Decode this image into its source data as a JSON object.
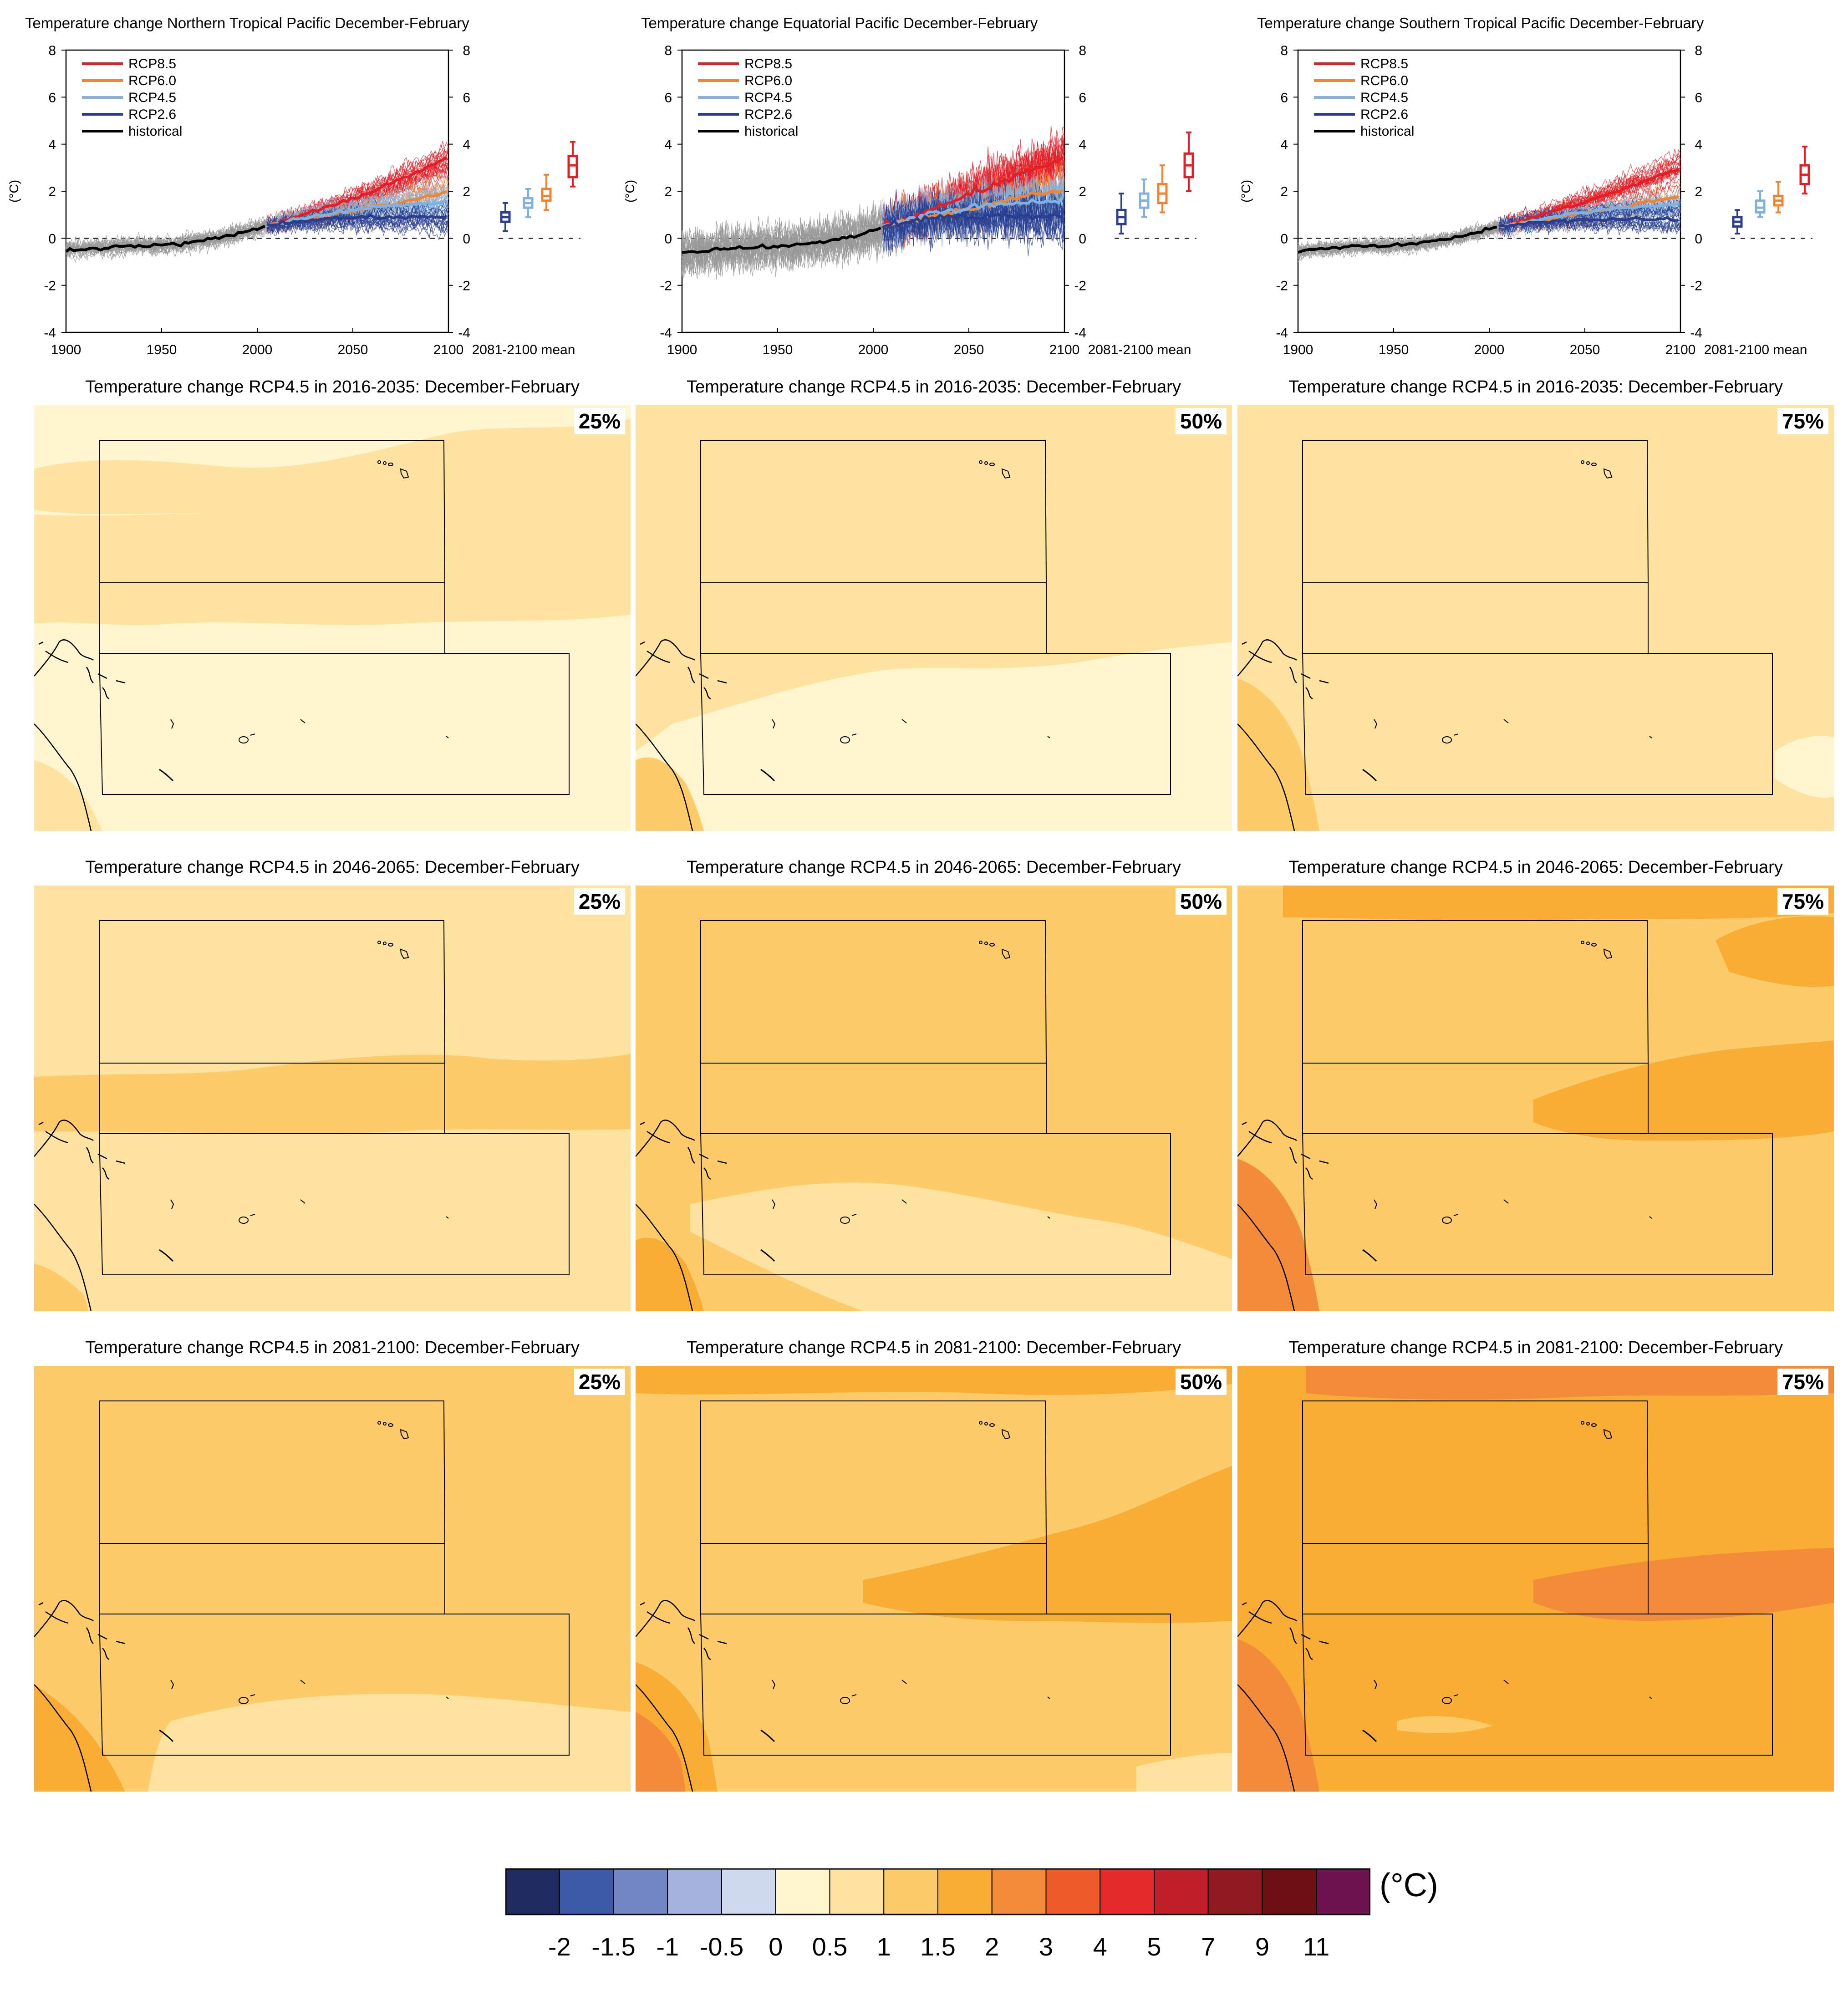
{
  "timeseries": [
    {
      "title": "Temperature change Northern Tropical Pacific December-February"
    },
    {
      "title": "Temperature change Equatorial Pacific December-February"
    },
    {
      "title": "Temperature change Southern Tropical Pacific December-February"
    }
  ],
  "ts_common": {
    "ylabel": "(°C)",
    "yticks": [
      "-4",
      "-2",
      "0",
      "2",
      "4",
      "6",
      "8"
    ],
    "xticks": [
      "1900",
      "1950",
      "2000",
      "2050",
      "2100"
    ],
    "mean_label": "2081-2100 mean",
    "legend": [
      "RCP8.5",
      "RCP6.0",
      "RCP4.5",
      "RCP2.6",
      "historical"
    ]
  },
  "maps": [
    {
      "title": "Temperature change RCP4.5 in 2016-2035: December-February",
      "pct": "25%"
    },
    {
      "title": "Temperature change RCP4.5 in 2016-2035: December-February",
      "pct": "50%"
    },
    {
      "title": "Temperature change RCP4.5 in 2016-2035: December-February",
      "pct": "75%"
    },
    {
      "title": "Temperature change RCP4.5 in 2046-2065: December-February",
      "pct": "25%"
    },
    {
      "title": "Temperature change RCP4.5 in 2046-2065: December-February",
      "pct": "50%"
    },
    {
      "title": "Temperature change RCP4.5 in 2046-2065: December-February",
      "pct": "75%"
    },
    {
      "title": "Temperature change RCP4.5 in 2081-2100: December-February",
      "pct": "25%"
    },
    {
      "title": "Temperature change RCP4.5 in 2081-2100: December-February",
      "pct": "50%"
    },
    {
      "title": "Temperature change RCP4.5 in 2081-2100: December-February",
      "pct": "75%"
    }
  ],
  "colorbar": {
    "unit": "(°C)",
    "tick_labels": [
      "-2",
      "-1.5",
      "-1",
      "-0.5",
      "0",
      "0.5",
      "1",
      "1.5",
      "2",
      "3",
      "4",
      "5",
      "7",
      "9",
      "11"
    ],
    "colors": [
      "#1f2a5e",
      "#3c5aa8",
      "#7186c2",
      "#a3b3dd",
      "#cfd9ee",
      "#fff6d0",
      "#fee3a0",
      "#fdcb6a",
      "#f9ad35",
      "#f28b3a",
      "#ee5a2a",
      "#e42a2a",
      "#c01f2a",
      "#901a22",
      "#6e1013",
      "#6c1350"
    ]
  },
  "chart_data": [
    {
      "type": "line",
      "title": "Temperature change Northern Tropical Pacific December-February",
      "xlabel": "",
      "ylabel": "(°C)",
      "xlim": [
        1900,
        2100
      ],
      "ylim": [
        -4,
        8
      ],
      "series": [
        {
          "name": "historical",
          "color": "#000000",
          "x": [
            1900,
            1910,
            1920,
            1930,
            1940,
            1950,
            1960,
            1970,
            1980,
            1990,
            2000,
            2005
          ],
          "y": [
            -0.5,
            -0.45,
            -0.4,
            -0.35,
            -0.3,
            -0.3,
            -0.25,
            -0.1,
            0.0,
            0.2,
            0.4,
            0.55
          ]
        },
        {
          "name": "RCP8.5",
          "color": "#e41e26",
          "x": [
            2005,
            2020,
            2040,
            2060,
            2080,
            2100
          ],
          "y": [
            0.55,
            0.9,
            1.4,
            2.0,
            2.7,
            3.4
          ]
        },
        {
          "name": "RCP6.0",
          "color": "#f08430",
          "x": [
            2005,
            2020,
            2040,
            2060,
            2080,
            2100
          ],
          "y": [
            0.55,
            0.75,
            1.0,
            1.3,
            1.6,
            2.0
          ]
        },
        {
          "name": "RCP4.5",
          "color": "#7fb1e3",
          "x": [
            2005,
            2020,
            2040,
            2060,
            2080,
            2100
          ],
          "y": [
            0.55,
            0.8,
            1.1,
            1.3,
            1.45,
            1.55
          ]
        },
        {
          "name": "RCP2.6",
          "color": "#2a3e90",
          "x": [
            2005,
            2020,
            2040,
            2060,
            2080,
            2100
          ],
          "y": [
            0.55,
            0.7,
            0.85,
            0.9,
            0.9,
            0.9
          ]
        }
      ],
      "boxes": [
        {
          "name": "RCP2.6",
          "min": 0.3,
          "q1": 0.7,
          "median": 0.9,
          "q3": 1.1,
          "max": 1.5
        },
        {
          "name": "RCP4.5",
          "min": 0.9,
          "q1": 1.3,
          "median": 1.5,
          "q3": 1.7,
          "max": 2.1
        },
        {
          "name": "RCP6.0",
          "min": 1.2,
          "q1": 1.6,
          "median": 1.8,
          "q3": 2.1,
          "max": 2.7
        },
        {
          "name": "RCP8.5",
          "min": 2.2,
          "q1": 2.6,
          "median": 3.1,
          "q3": 3.5,
          "max": 4.1
        }
      ]
    },
    {
      "type": "line",
      "title": "Temperature change Equatorial Pacific December-February",
      "xlabel": "",
      "ylabel": "(°C)",
      "xlim": [
        1900,
        2100
      ],
      "ylim": [
        -4,
        8
      ],
      "series": [
        {
          "name": "historical",
          "color": "#000000",
          "x": [
            1900,
            1910,
            1920,
            1930,
            1940,
            1950,
            1960,
            1970,
            1980,
            1990,
            2000,
            2005
          ],
          "y": [
            -0.6,
            -0.55,
            -0.45,
            -0.4,
            -0.35,
            -0.35,
            -0.3,
            -0.2,
            -0.05,
            0.1,
            0.3,
            0.5
          ]
        },
        {
          "name": "RCP8.5",
          "color": "#e41e26",
          "x": [
            2005,
            2020,
            2040,
            2060,
            2080,
            2100
          ],
          "y": [
            0.5,
            0.9,
            1.5,
            2.2,
            2.8,
            3.4
          ]
        },
        {
          "name": "RCP6.0",
          "color": "#f08430",
          "x": [
            2005,
            2020,
            2040,
            2060,
            2080,
            2100
          ],
          "y": [
            0.5,
            0.8,
            1.1,
            1.4,
            1.8,
            2.1
          ]
        },
        {
          "name": "RCP4.5",
          "color": "#7fb1e3",
          "x": [
            2005,
            2020,
            2040,
            2060,
            2080,
            2100
          ],
          "y": [
            0.5,
            0.85,
            1.2,
            1.4,
            1.55,
            1.65
          ]
        },
        {
          "name": "RCP2.6",
          "color": "#2a3e90",
          "x": [
            2005,
            2020,
            2040,
            2060,
            2080,
            2100
          ],
          "y": [
            0.5,
            0.75,
            0.9,
            0.95,
            0.95,
            0.95
          ]
        }
      ],
      "boxes": [
        {
          "name": "RCP2.6",
          "min": 0.2,
          "q1": 0.6,
          "median": 0.9,
          "q3": 1.2,
          "max": 1.9
        },
        {
          "name": "RCP4.5",
          "min": 0.9,
          "q1": 1.3,
          "median": 1.6,
          "q3": 1.9,
          "max": 2.5
        },
        {
          "name": "RCP6.0",
          "min": 1.1,
          "q1": 1.5,
          "median": 1.9,
          "q3": 2.3,
          "max": 3.1
        },
        {
          "name": "RCP8.5",
          "min": 2.0,
          "q1": 2.6,
          "median": 3.1,
          "q3": 3.6,
          "max": 4.5
        }
      ]
    },
    {
      "type": "line",
      "title": "Temperature change Southern Tropical Pacific December-February",
      "xlabel": "",
      "ylabel": "(°C)",
      "xlim": [
        1900,
        2100
      ],
      "ylim": [
        -4,
        8
      ],
      "series": [
        {
          "name": "historical",
          "color": "#000000",
          "x": [
            1900,
            1910,
            1920,
            1930,
            1940,
            1950,
            1960,
            1970,
            1980,
            1990,
            2000,
            2005
          ],
          "y": [
            -0.55,
            -0.45,
            -0.4,
            -0.35,
            -0.3,
            -0.3,
            -0.25,
            -0.1,
            0.0,
            0.2,
            0.4,
            0.5
          ]
        },
        {
          "name": "RCP8.5",
          "color": "#e41e26",
          "x": [
            2005,
            2020,
            2040,
            2060,
            2080,
            2100
          ],
          "y": [
            0.5,
            0.8,
            1.3,
            1.8,
            2.4,
            3.0
          ]
        },
        {
          "name": "RCP6.0",
          "color": "#f08430",
          "x": [
            2005,
            2020,
            2040,
            2060,
            2080,
            2100
          ],
          "y": [
            0.5,
            0.7,
            0.95,
            1.2,
            1.5,
            1.8
          ]
        },
        {
          "name": "RCP4.5",
          "color": "#7fb1e3",
          "x": [
            2005,
            2020,
            2040,
            2060,
            2080,
            2100
          ],
          "y": [
            0.5,
            0.7,
            1.0,
            1.2,
            1.35,
            1.45
          ]
        },
        {
          "name": "RCP2.6",
          "color": "#2a3e90",
          "x": [
            2005,
            2020,
            2040,
            2060,
            2080,
            2100
          ],
          "y": [
            0.5,
            0.65,
            0.75,
            0.8,
            0.8,
            0.8
          ]
        }
      ],
      "boxes": [
        {
          "name": "RCP2.6",
          "min": 0.2,
          "q1": 0.5,
          "median": 0.7,
          "q3": 0.9,
          "max": 1.2
        },
        {
          "name": "RCP4.5",
          "min": 0.9,
          "q1": 1.1,
          "median": 1.3,
          "q3": 1.6,
          "max": 2.0
        },
        {
          "name": "RCP6.0",
          "min": 1.1,
          "q1": 1.4,
          "median": 1.6,
          "q3": 1.8,
          "max": 2.4
        },
        {
          "name": "RCP8.5",
          "min": 1.9,
          "q1": 2.3,
          "median": 2.7,
          "q3": 3.1,
          "max": 3.9
        }
      ]
    }
  ]
}
